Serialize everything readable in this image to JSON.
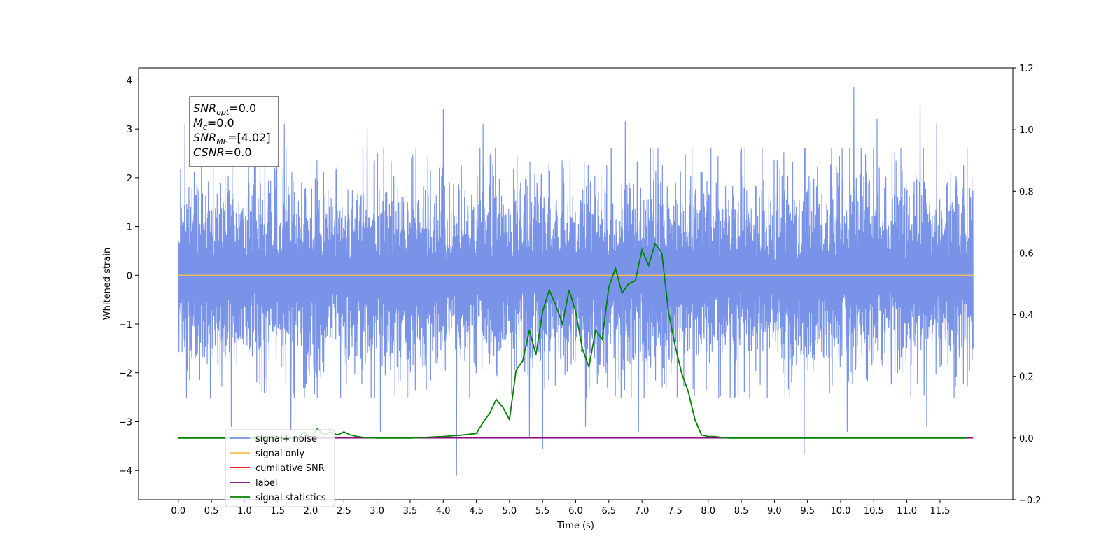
{
  "chart_data": {
    "type": "line",
    "title": "",
    "xlabel": "Time (s)",
    "ylabel": "Whitened strain",
    "xlim": [
      -0.6,
      12.6
    ],
    "ylim": [
      -4.6,
      4.25
    ],
    "y2lim": [
      -0.2,
      1.2
    ],
    "x_ticks": [
      0.0,
      0.5,
      1.0,
      1.5,
      2.0,
      2.5,
      3.0,
      3.5,
      4.0,
      4.5,
      5.0,
      5.5,
      6.0,
      6.5,
      7.0,
      7.5,
      8.0,
      8.5,
      9.0,
      9.5,
      10.0,
      10.5,
      11.0,
      11.5
    ],
    "x_tick_labels": [
      "0.0",
      "0.5",
      "1.0",
      "1.5",
      "2.0",
      "2.5",
      "3.0",
      "3.5",
      "4.0",
      "4.5",
      "5.0",
      "5.5",
      "6.0",
      "6.5",
      "7.0",
      "7.5",
      "8.0",
      "8.5",
      "9.0",
      "9.5",
      "10.0",
      "10.5",
      "11.0",
      "11.5"
    ],
    "y_ticks": [
      -4,
      -3,
      -2,
      -1,
      0,
      1,
      2,
      3,
      4
    ],
    "y_tick_labels": [
      "−4",
      "−3",
      "−2",
      "−1",
      "0",
      "1",
      "2",
      "3",
      "4"
    ],
    "y2_ticks": [
      -0.2,
      0.0,
      0.2,
      0.4,
      0.6,
      0.8,
      1.0,
      1.2
    ],
    "y2_tick_labels": [
      "−0.2",
      "0.0",
      "0.2",
      "0.4",
      "0.6",
      "0.8",
      "1.0",
      "1.2"
    ],
    "grid": false,
    "legend_position": "lower-left",
    "annotation": {
      "lines": [
        {
          "sym": "SNR",
          "sub": "opt",
          "rest": "=0.0"
        },
        {
          "sym": "M",
          "sub": "c",
          "rest": "=0.0"
        },
        {
          "sym": "SNR",
          "sub": "MF",
          "rest": "=[4.02]"
        },
        {
          "sym": "CSNR",
          "sub": "",
          "rest": "=0.0"
        }
      ]
    },
    "series": [
      {
        "name": "signal+ noise",
        "color": "#7893e8",
        "axis": "left",
        "kind": "noise",
        "x_range": [
          0.0,
          12.0
        ],
        "envelope": [
          -2.0,
          2.3
        ],
        "spikes": [
          {
            "x": 0.1,
            "y": 3.1
          },
          {
            "x": 0.35,
            "y": 3.3
          },
          {
            "x": 1.15,
            "y": 3.5
          },
          {
            "x": 1.6,
            "y": 3.1
          },
          {
            "x": 2.85,
            "y": 3.0
          },
          {
            "x": 4.0,
            "y": 3.4
          },
          {
            "x": 4.6,
            "y": 3.1
          },
          {
            "x": 6.75,
            "y": 3.15
          },
          {
            "x": 10.2,
            "y": 3.85
          },
          {
            "x": 10.55,
            "y": 3.2
          },
          {
            "x": 11.2,
            "y": 3.5
          },
          {
            "x": 11.45,
            "y": 3.1
          },
          {
            "x": 0.8,
            "y": -3.1
          },
          {
            "x": 1.7,
            "y": -3.2
          },
          {
            "x": 3.05,
            "y": -3.2
          },
          {
            "x": 4.2,
            "y": -4.1
          },
          {
            "x": 5.3,
            "y": -3.3
          },
          {
            "x": 5.5,
            "y": -3.55
          },
          {
            "x": 6.15,
            "y": -3.1
          },
          {
            "x": 6.95,
            "y": -3.2
          },
          {
            "x": 9.45,
            "y": -3.65
          },
          {
            "x": 10.1,
            "y": -3.2
          },
          {
            "x": 11.3,
            "y": -3.1
          }
        ]
      },
      {
        "name": "signal only",
        "color": "#ffbf50",
        "axis": "left",
        "x": [
          0.0,
          12.0
        ],
        "y": [
          0.0,
          0.0
        ]
      },
      {
        "name": "cumilative SNR",
        "color": "#ff0000",
        "axis": "right",
        "x": [
          0.0,
          12.0
        ],
        "y": [
          0.0,
          0.0
        ]
      },
      {
        "name": "label",
        "color": "#800080",
        "axis": "right",
        "x": [
          0.0,
          12.0
        ],
        "y": [
          0.0,
          0.0
        ]
      },
      {
        "name": "signal statistics",
        "color": "#008000",
        "axis": "right",
        "x": [
          0.0,
          0.5,
          1.0,
          1.5,
          1.8,
          1.9,
          2.0,
          2.1,
          2.2,
          2.3,
          2.4,
          2.5,
          2.6,
          2.7,
          2.8,
          3.0,
          3.5,
          4.0,
          4.3,
          4.5,
          4.6,
          4.7,
          4.8,
          4.9,
          5.0,
          5.1,
          5.2,
          5.3,
          5.4,
          5.5,
          5.6,
          5.7,
          5.8,
          5.9,
          6.0,
          6.1,
          6.2,
          6.3,
          6.4,
          6.5,
          6.6,
          6.7,
          6.8,
          6.9,
          7.0,
          7.1,
          7.2,
          7.3,
          7.4,
          7.5,
          7.6,
          7.7,
          7.8,
          7.9,
          8.0,
          8.1,
          8.2,
          8.3,
          8.5,
          9.0,
          10.0,
          11.0,
          11.9
        ],
        "y": [
          0.0,
          0.0,
          0.0,
          0.0,
          0.0,
          0.02,
          0.0,
          0.03,
          0.01,
          0.02,
          0.01,
          0.02,
          0.01,
          0.005,
          0.002,
          0.0,
          0.0,
          0.005,
          0.01,
          0.015,
          0.05,
          0.08,
          0.125,
          0.1,
          0.06,
          0.22,
          0.25,
          0.35,
          0.27,
          0.41,
          0.48,
          0.43,
          0.37,
          0.48,
          0.41,
          0.29,
          0.23,
          0.35,
          0.32,
          0.49,
          0.55,
          0.47,
          0.5,
          0.51,
          0.61,
          0.56,
          0.63,
          0.6,
          0.41,
          0.3,
          0.21,
          0.15,
          0.06,
          0.01,
          0.005,
          0.005,
          0.002,
          0.0,
          0.0,
          0.0,
          0.0,
          0.0,
          0.0
        ]
      }
    ]
  }
}
